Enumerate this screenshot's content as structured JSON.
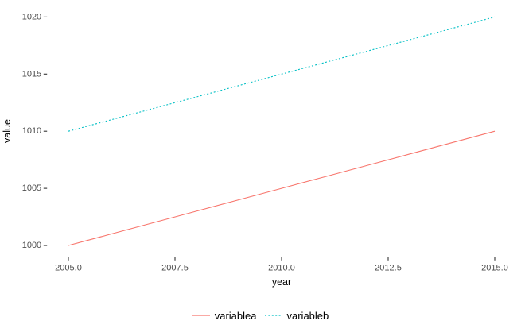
{
  "figure": {
    "background": "#ffffff"
  },
  "chart_data": {
    "type": "line",
    "title": "",
    "xlabel": "year",
    "ylabel": "value",
    "x": [
      2005,
      2006,
      2007,
      2008,
      2009,
      2010,
      2011,
      2012,
      2013,
      2014,
      2015
    ],
    "series": [
      {
        "name": "variablea",
        "values": [
          1000,
          1001,
          1002,
          1003,
          1004,
          1005,
          1006,
          1007,
          1008,
          1009,
          1010
        ],
        "color": "#F8766D",
        "linestyle": "solid"
      },
      {
        "name": "variableb",
        "values": [
          1010,
          1011,
          1012,
          1013,
          1014,
          1015,
          1016,
          1017,
          1018,
          1019,
          1020
        ],
        "color": "#00BFC4",
        "linestyle": "dotted"
      }
    ],
    "xlim": [
      2004.5,
      2015.5
    ],
    "ylim": [
      999,
      1021
    ],
    "x_ticks": [
      {
        "value": 2005,
        "label": "2005.0"
      },
      {
        "value": 2007.5,
        "label": "2007.5"
      },
      {
        "value": 2010,
        "label": "2010.0"
      },
      {
        "value": 2012.5,
        "label": "2012.5"
      },
      {
        "value": 2015,
        "label": "2015.0"
      }
    ],
    "y_ticks": [
      {
        "value": 1000,
        "label": "1000"
      },
      {
        "value": 1005,
        "label": "1005"
      },
      {
        "value": 1010,
        "label": "1010"
      },
      {
        "value": 1015,
        "label": "1015"
      },
      {
        "value": 1020,
        "label": "1020"
      }
    ],
    "grid": false,
    "legend_position": "bottom",
    "style": {
      "tick_color": "#333333",
      "tick_label_color": "#4d4d4d",
      "title_color": "#000000",
      "line_width": 1.1
    }
  }
}
